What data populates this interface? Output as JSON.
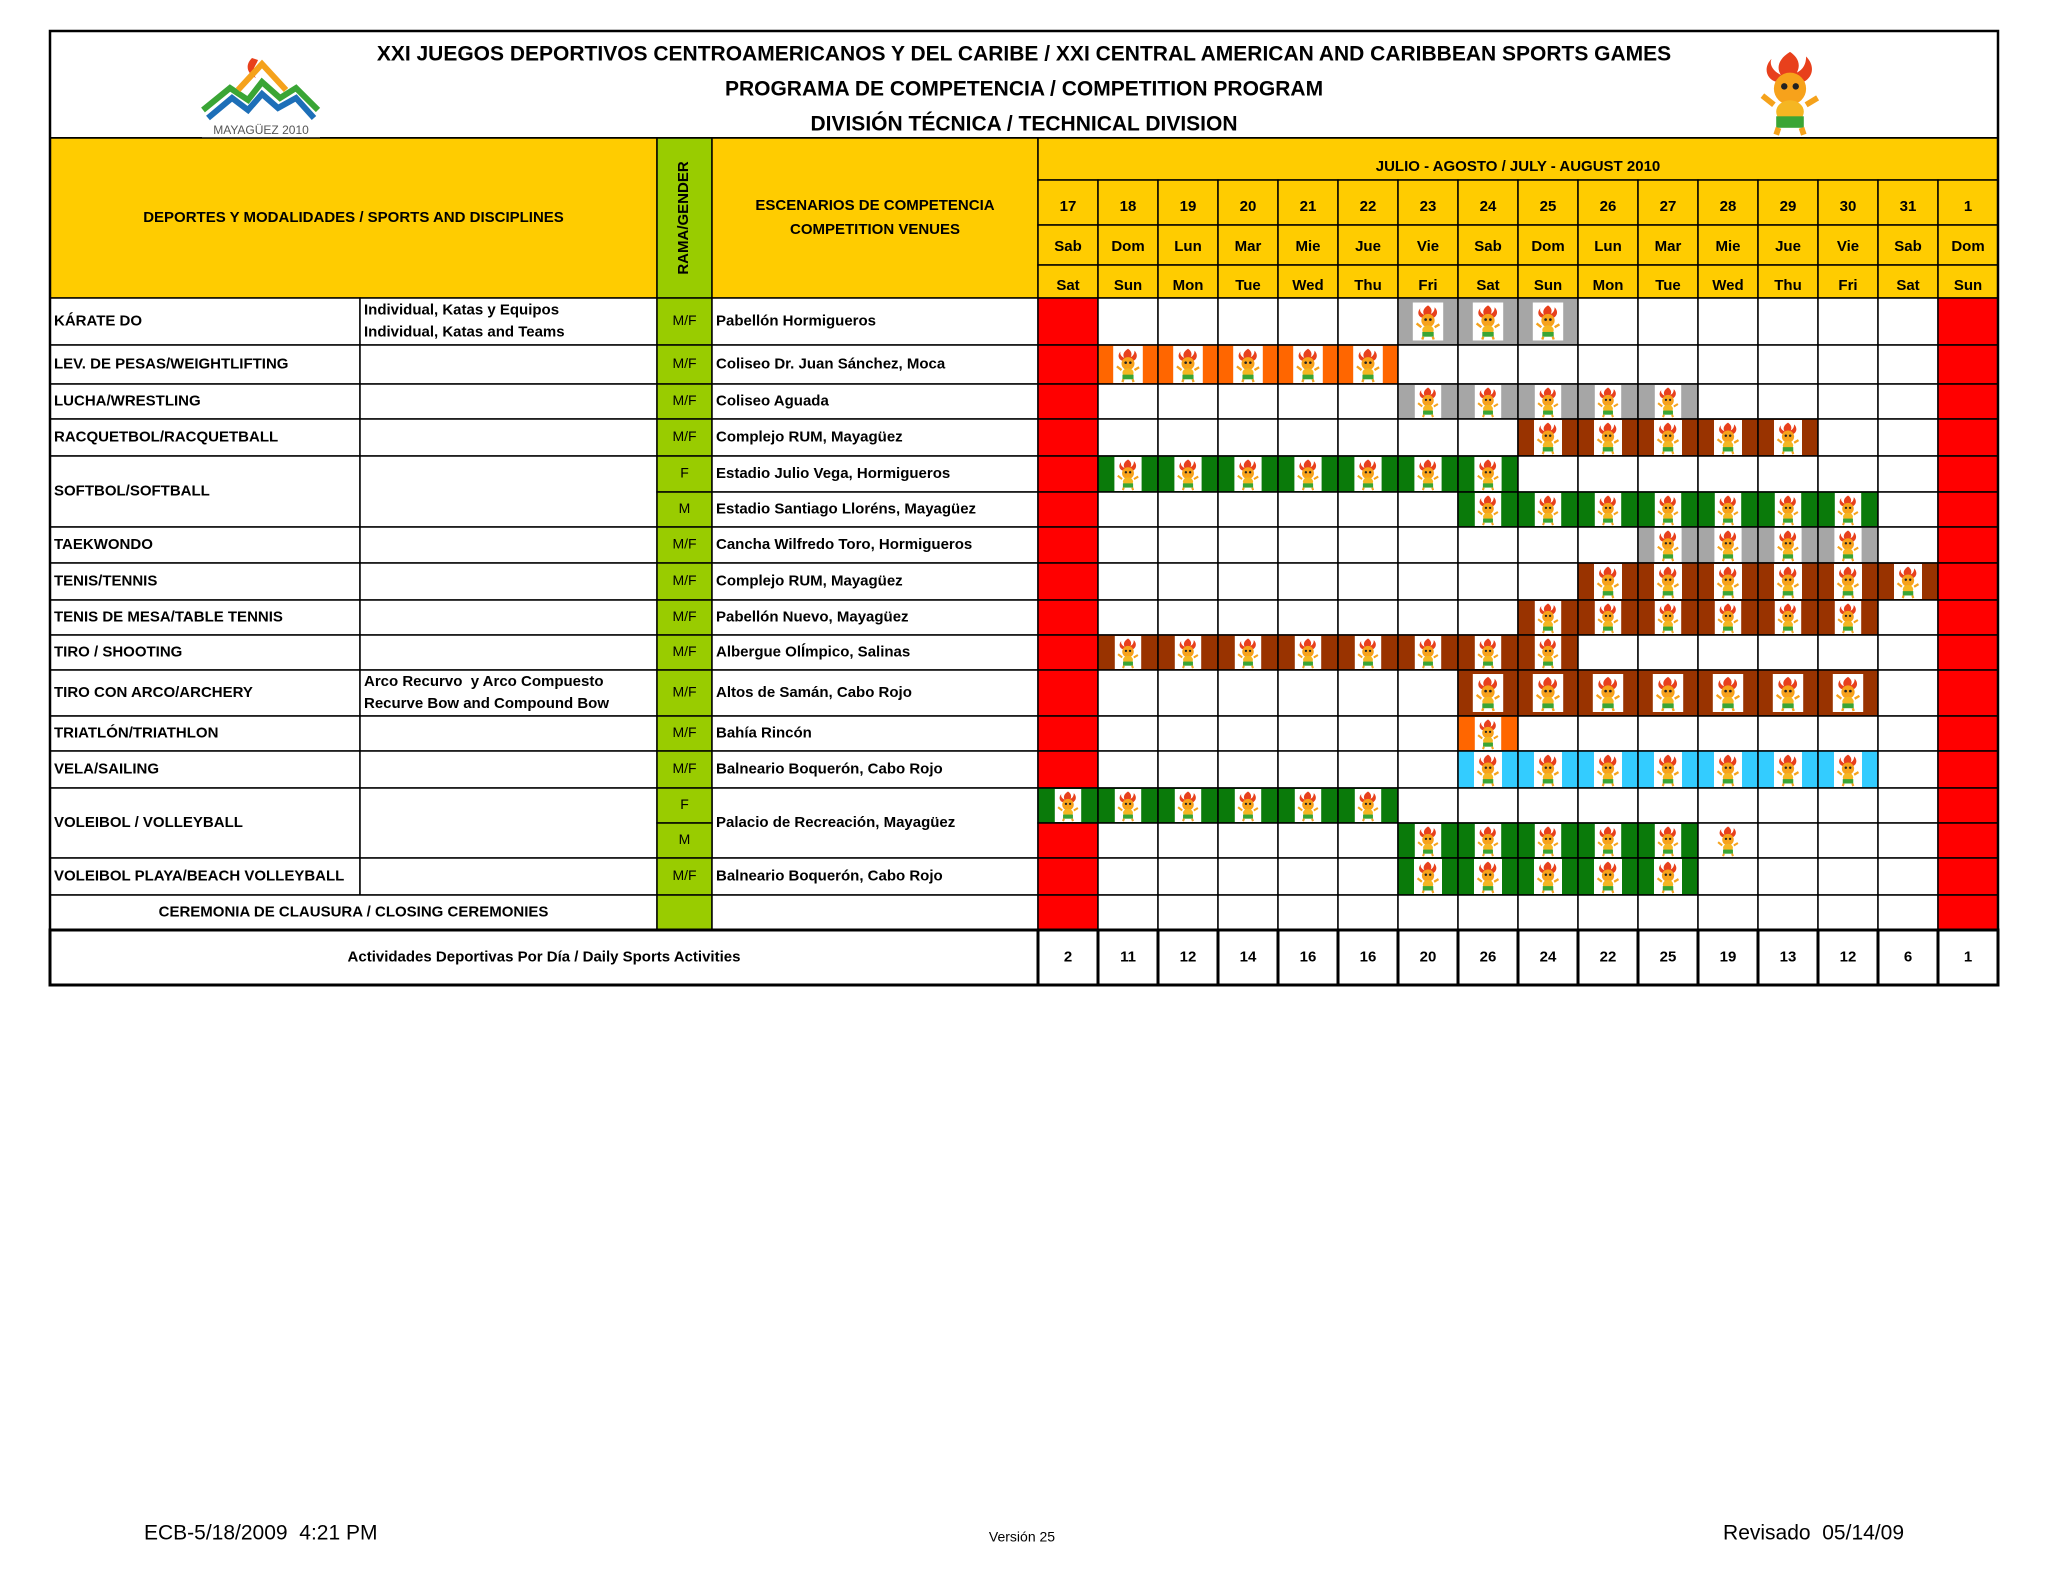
{
  "header": {
    "titles": [
      "XXI JUEGOS DEPORTIVOS CENTROAMERICANOS Y DEL CARIBE / XXI CENTRAL AMERICAN AND CARIBBEAN SPORTS GAMES",
      "PROGRAMA DE COMPETENCIA / COMPETITION PROGRAM",
      "DIVISIÓN TÉCNICA / TECHNICAL DIVISION"
    ],
    "logo_text": "MAYAGÜEZ 2010"
  },
  "columns": {
    "sports": "DEPORTES Y MODALIDADES / SPORTS AND DISCIPLINES",
    "gender": "RAMA/GENDER",
    "venues": [
      "ESCENARIOS DE COMPETENCIA",
      "COMPETITION VENUES"
    ],
    "period": "JULIO - AGOSTO / JULY - AUGUST 2010",
    "days": [
      17,
      18,
      19,
      20,
      21,
      22,
      23,
      24,
      25,
      26,
      27,
      28,
      29,
      30,
      31,
      1
    ],
    "days_es": [
      "Sab",
      "Dom",
      "Lun",
      "Mar",
      "Mie",
      "Jue",
      "Vie",
      "Sab",
      "Dom",
      "Lun",
      "Mar",
      "Mie",
      "Jue",
      "Vie",
      "Sab",
      "Dom"
    ],
    "days_en": [
      "Sat",
      "Sun",
      "Mon",
      "Tue",
      "Wed",
      "Thu",
      "Fri",
      "Sat",
      "Sun",
      "Mon",
      "Tue",
      "Wed",
      "Thu",
      "Fri",
      "Sat",
      "Sun"
    ]
  },
  "sports": [
    {
      "name": "KÁRATE DO",
      "discipline": [
        "Individual, Katas y Equipos",
        "Individual, Katas and Teams"
      ],
      "rows": [
        {
          "gender": "M/F",
          "venue": "Pabellón Hormigueros",
          "days": [
            "#ff0000",
            null,
            null,
            null,
            null,
            null,
            "#a6a6a6",
            "#a6a6a6",
            "#a6a6a6",
            null,
            null,
            null,
            null,
            null,
            null,
            "#ff0000"
          ]
        }
      ]
    },
    {
      "name": "LEV. DE PESAS/WEIGHTLIFTING",
      "rows": [
        {
          "gender": "M/F",
          "venue": "Coliseo Dr. Juan Sánchez, Moca",
          "days": [
            "#ff0000",
            "#ff6600",
            "#ff6600",
            "#ff6600",
            "#ff6600",
            "#ff6600",
            null,
            null,
            null,
            null,
            null,
            null,
            null,
            null,
            null,
            "#ff0000"
          ]
        }
      ]
    },
    {
      "name": "LUCHA/WRESTLING",
      "rows": [
        {
          "gender": "M/F",
          "venue": "Coliseo Aguada",
          "days": [
            "#ff0000",
            null,
            null,
            null,
            null,
            null,
            "#a6a6a6",
            "#a6a6a6",
            "#a6a6a6",
            "#a6a6a6",
            "#a6a6a6",
            null,
            null,
            null,
            null,
            "#ff0000"
          ]
        }
      ]
    },
    {
      "name": "RACQUETBOL/RACQUETBALL",
      "rows": [
        {
          "gender": "M/F",
          "venue": "Complejo RUM, Mayagüez",
          "days": [
            "#ff0000",
            null,
            null,
            null,
            null,
            null,
            null,
            null,
            "#993300",
            "#993300",
            "#993300",
            "#993300",
            "#993300",
            null,
            null,
            "#ff0000"
          ]
        }
      ]
    },
    {
      "name": "SOFTBOL/SOFTBALL",
      "rows": [
        {
          "gender": "F",
          "venue": "Estadio Julio Vega, Hormigueros",
          "days": [
            "#ff0000",
            "#0a7a0a",
            "#0a7a0a",
            "#0a7a0a",
            "#0a7a0a",
            "#0a7a0a",
            "#0a7a0a",
            "#0a7a0a",
            null,
            null,
            null,
            null,
            null,
            null,
            null,
            "#ff0000"
          ]
        },
        {
          "gender": "M",
          "venue": "Estadio Santiago Lloréns, Mayagüez",
          "days": [
            "#ff0000",
            null,
            null,
            null,
            null,
            null,
            null,
            "#0a7a0a",
            "#0a7a0a",
            "#0a7a0a",
            "#0a7a0a",
            "#0a7a0a",
            "#0a7a0a",
            "#0a7a0a",
            null,
            "#ff0000"
          ]
        }
      ]
    },
    {
      "name": "TAEKWONDO",
      "rows": [
        {
          "gender": "M/F",
          "venue": "Cancha Wilfredo Toro, Hormigueros",
          "days": [
            "#ff0000",
            null,
            null,
            null,
            null,
            null,
            null,
            null,
            null,
            null,
            "#a6a6a6",
            "#a6a6a6",
            "#a6a6a6",
            "#a6a6a6",
            null,
            "#ff0000"
          ]
        }
      ]
    },
    {
      "name": "TENIS/TENNIS",
      "rows": [
        {
          "gender": "M/F",
          "venue": "Complejo RUM, Mayagüez",
          "days": [
            "#ff0000",
            null,
            null,
            null,
            null,
            null,
            null,
            null,
            null,
            "#993300",
            "#993300",
            "#993300",
            "#993300",
            "#993300",
            "#993300",
            "#ff0000"
          ]
        }
      ]
    },
    {
      "name": "TENIS DE MESA/TABLE TENNIS",
      "rows": [
        {
          "gender": "M/F",
          "venue": "Pabellón Nuevo, Mayagüez",
          "days": [
            "#ff0000",
            null,
            null,
            null,
            null,
            null,
            null,
            null,
            "#993300",
            "#993300",
            "#993300",
            "#993300",
            "#993300",
            "#993300",
            null,
            "#ff0000"
          ]
        }
      ]
    },
    {
      "name": "TIRO / SHOOTING",
      "rows": [
        {
          "gender": "M/F",
          "venue": "Albergue OlÍmpico, Salinas",
          "days": [
            "#ff0000",
            "#993300",
            "#993300",
            "#993300",
            "#993300",
            "#993300",
            "#993300",
            "#993300",
            "#993300",
            null,
            null,
            null,
            null,
            null,
            null,
            "#ff0000"
          ]
        }
      ]
    },
    {
      "name": "TIRO CON ARCO/ARCHERY",
      "discipline": [
        "Arco Recurvo  y Arco Compuesto",
        "Recurve Bow and Compound Bow"
      ],
      "rows": [
        {
          "gender": "M/F",
          "venue": "Altos de Samán, Cabo Rojo",
          "days": [
            "#ff0000",
            null,
            null,
            null,
            null,
            null,
            null,
            "#993300",
            "#993300",
            "#993300",
            "#993300",
            "#993300",
            "#993300",
            "#993300",
            null,
            "#ff0000"
          ]
        }
      ]
    },
    {
      "name": "TRIATLÓN/TRIATHLON",
      "rows": [
        {
          "gender": "M/F",
          "venue": "Bahía Rincón",
          "days": [
            "#ff0000",
            null,
            null,
            null,
            null,
            null,
            null,
            "#ff6600",
            null,
            null,
            null,
            null,
            null,
            null,
            null,
            "#ff0000"
          ]
        }
      ]
    },
    {
      "name": "VELA/SAILING",
      "rows": [
        {
          "gender": "M/F",
          "venue": "Balneario Boquerón, Cabo Rojo",
          "days": [
            "#ff0000",
            null,
            null,
            null,
            null,
            null,
            null,
            "#33ccff",
            "#33ccff",
            "#33ccff",
            "#33ccff",
            "#33ccff",
            "#33ccff",
            "#33ccff",
            null,
            "#ff0000"
          ]
        }
      ]
    },
    {
      "name": "VOLEIBOL / VOLLEYBALL",
      "venue": "Palacio de Recreación, Mayagüez",
      "rows": [
        {
          "gender": "F",
          "days": [
            "#0a7a0a",
            "#0a7a0a",
            "#0a7a0a",
            "#0a7a0a",
            "#0a7a0a",
            "#0a7a0a",
            null,
            null,
            null,
            null,
            null,
            null,
            null,
            null,
            null,
            "#ff0000"
          ]
        },
        {
          "gender": "M",
          "days": [
            "#ff0000",
            null,
            null,
            null,
            null,
            null,
            "#0a7a0a",
            "#0a7a0a",
            "#0a7a0a",
            "#0a7a0a",
            "#0a7a0a",
            "#ffffff",
            null,
            null,
            null,
            "#ff0000"
          ]
        }
      ]
    },
    {
      "name": "VOLEIBOL PLAYA/BEACH VOLLEYBALL",
      "rows": [
        {
          "gender": "M/F",
          "venue": "Balneario Boquerón, Cabo Rojo",
          "days": [
            "#ff0000",
            null,
            null,
            null,
            null,
            null,
            "#0a7a0a",
            "#0a7a0a",
            "#0a7a0a",
            "#0a7a0a",
            "#0a7a0a",
            null,
            null,
            null,
            null,
            "#ff0000"
          ]
        }
      ]
    }
  ],
  "ceremony": {
    "name": "CEREMONIA DE CLAUSURA / CLOSING CEREMONIES",
    "days": [
      "#ff0000",
      null,
      null,
      null,
      null,
      null,
      null,
      null,
      null,
      null,
      null,
      null,
      null,
      null,
      null,
      "#ff0000"
    ]
  },
  "totals": {
    "label": "Actividades Deportivas Por Día / Daily Sports Activities",
    "values": [
      2,
      11,
      12,
      14,
      16,
      16,
      20,
      26,
      24,
      22,
      25,
      19,
      13,
      12,
      6,
      1
    ]
  },
  "footer": {
    "left": "ECB-5/18/2009  4:21 PM",
    "center": "Versión 25",
    "right": "Revisado  05/14/09"
  }
}
